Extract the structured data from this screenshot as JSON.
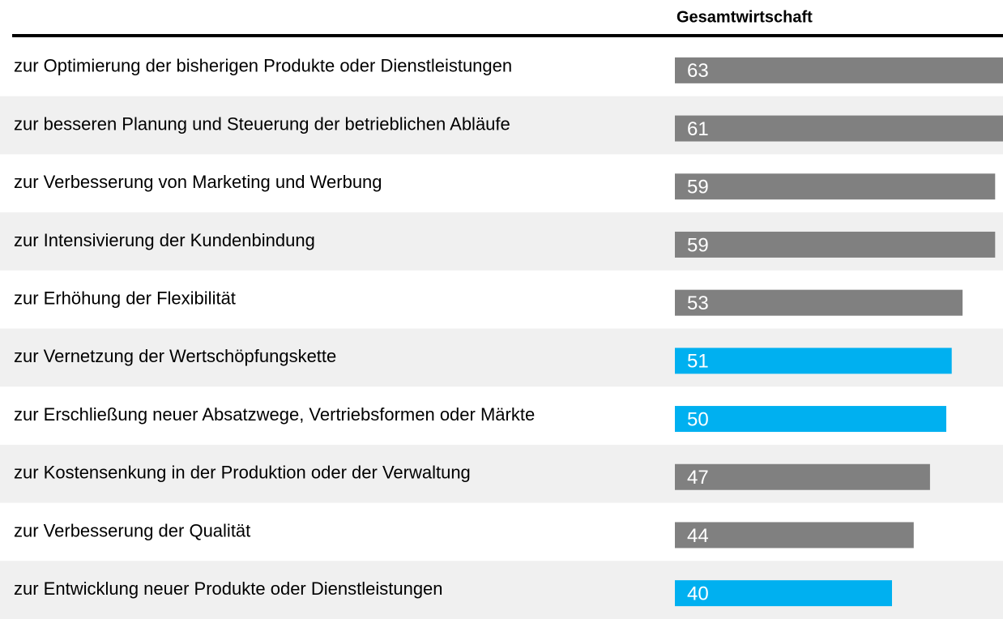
{
  "chart_data": {
    "type": "bar",
    "orientation": "horizontal",
    "header": "Gesamtwirtschaft",
    "categories": [
      "zur Optimierung der bisherigen Produkte oder Dienstleistungen",
      "zur besseren Planung und Steuerung der betrieblichen Abläufe",
      "zur Verbesserung von Marketing und Werbung",
      "zur Intensivierung der Kundenbindung",
      "zur Erhöhung der Flexibilität",
      "zur Vernetzung der Wertschöpfungskette",
      "zur Erschließung neuer Absatzwege, Vertriebsformen oder Märkte",
      "zur Kostensenkung in der Produktion oder der Verwaltung",
      "zur Verbesserung der Qualität",
      "zur Entwicklung neuer Produkte oder Dienstleistungen"
    ],
    "values": [
      63,
      61,
      59,
      59,
      53,
      51,
      50,
      47,
      44,
      40
    ],
    "colors": [
      "#808080",
      "#808080",
      "#808080",
      "#808080",
      "#808080",
      "#00b0f0",
      "#00b0f0",
      "#808080",
      "#808080",
      "#00b0f0"
    ]
  }
}
